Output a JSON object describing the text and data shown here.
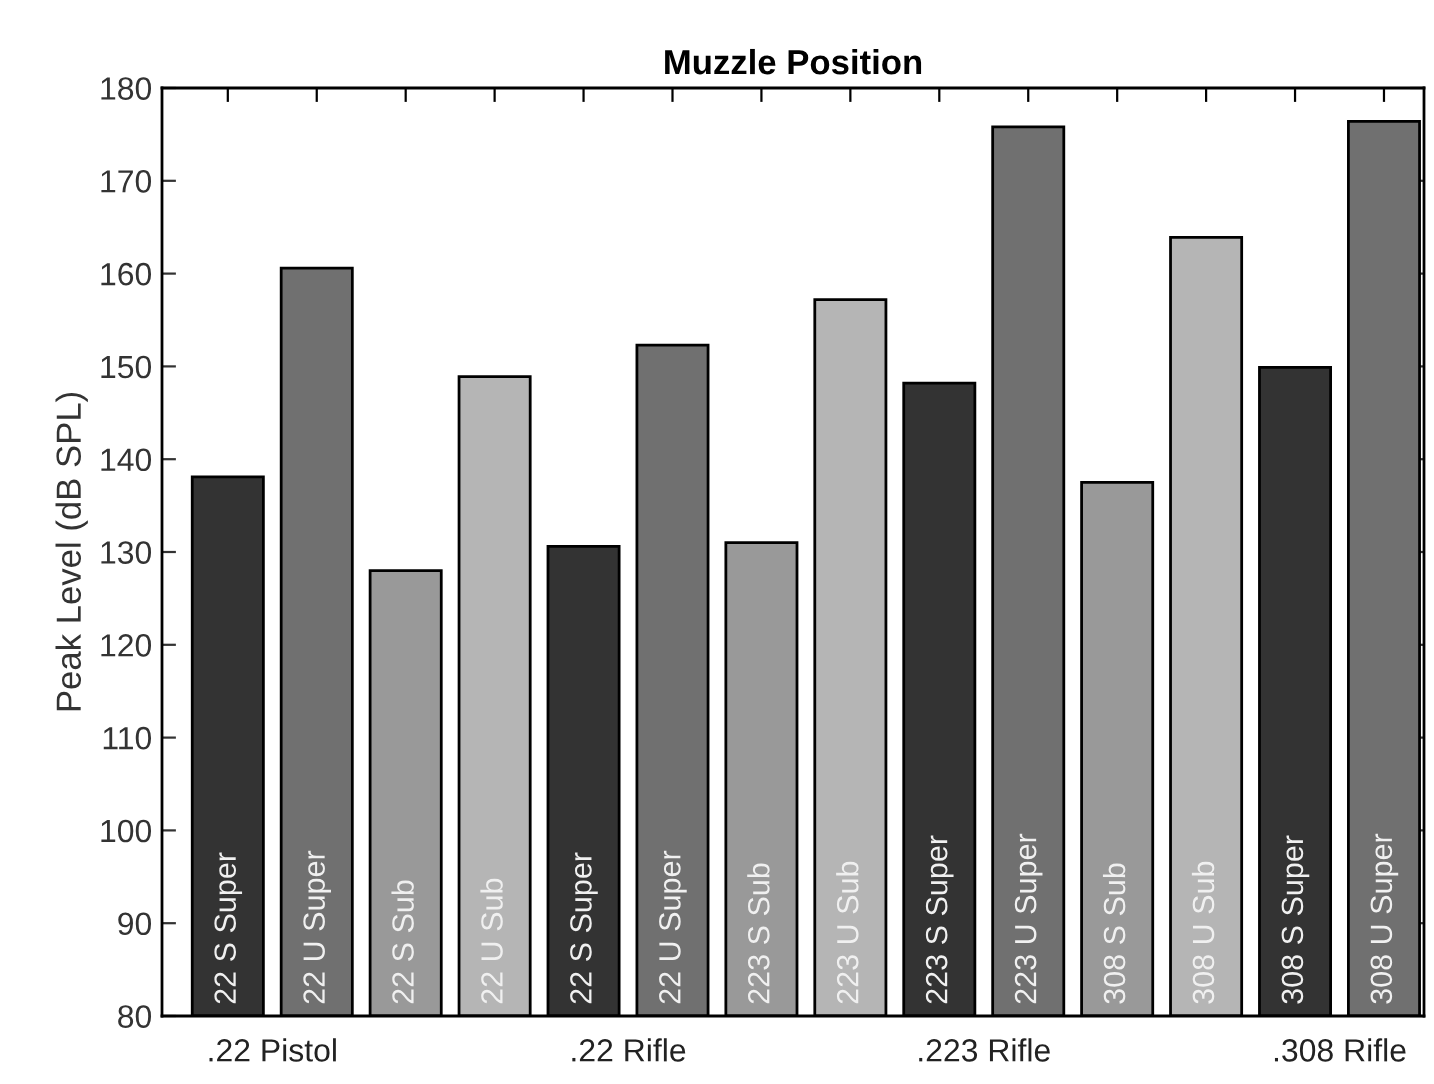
{
  "chart_data": {
    "type": "bar",
    "title": "Muzzle Position",
    "ylabel": "Peak Level (dB SPL)",
    "categories": [
      "22 S Super",
      "22 U Super",
      "22 S Sub",
      "22 U Sub",
      "22 S Super",
      "22 U Super",
      "223 S Sub",
      "223 U Sub",
      "223 S Super",
      "223 U Super",
      "308 S Sub",
      "308 U Sub",
      "308 S Super",
      "308 U Super"
    ],
    "values": [
      138.1,
      160.6,
      128,
      148.9,
      130.6,
      152.3,
      131,
      157.2,
      148.2,
      175.8,
      137.5,
      163.9,
      149.9,
      176.4
    ],
    "colors": [
      "#333333",
      "#707070",
      "#999999",
      "#b5b5b5",
      "#333333",
      "#707070",
      "#999999",
      "#b5b5b5",
      "#333333",
      "#707070",
      "#999999",
      "#b5b5b5",
      "#333333",
      "#707070"
    ],
    "annotations": [
      ".22 Pistol",
      ".22 Rifle",
      ".223 Rifle",
      ".308 Rifle"
    ],
    "ylim": [
      80,
      180
    ],
    "yticks": [
      80,
      90,
      100,
      110,
      120,
      130,
      140,
      150,
      160,
      170,
      180
    ],
    "grid": false,
    "legend": false
  }
}
